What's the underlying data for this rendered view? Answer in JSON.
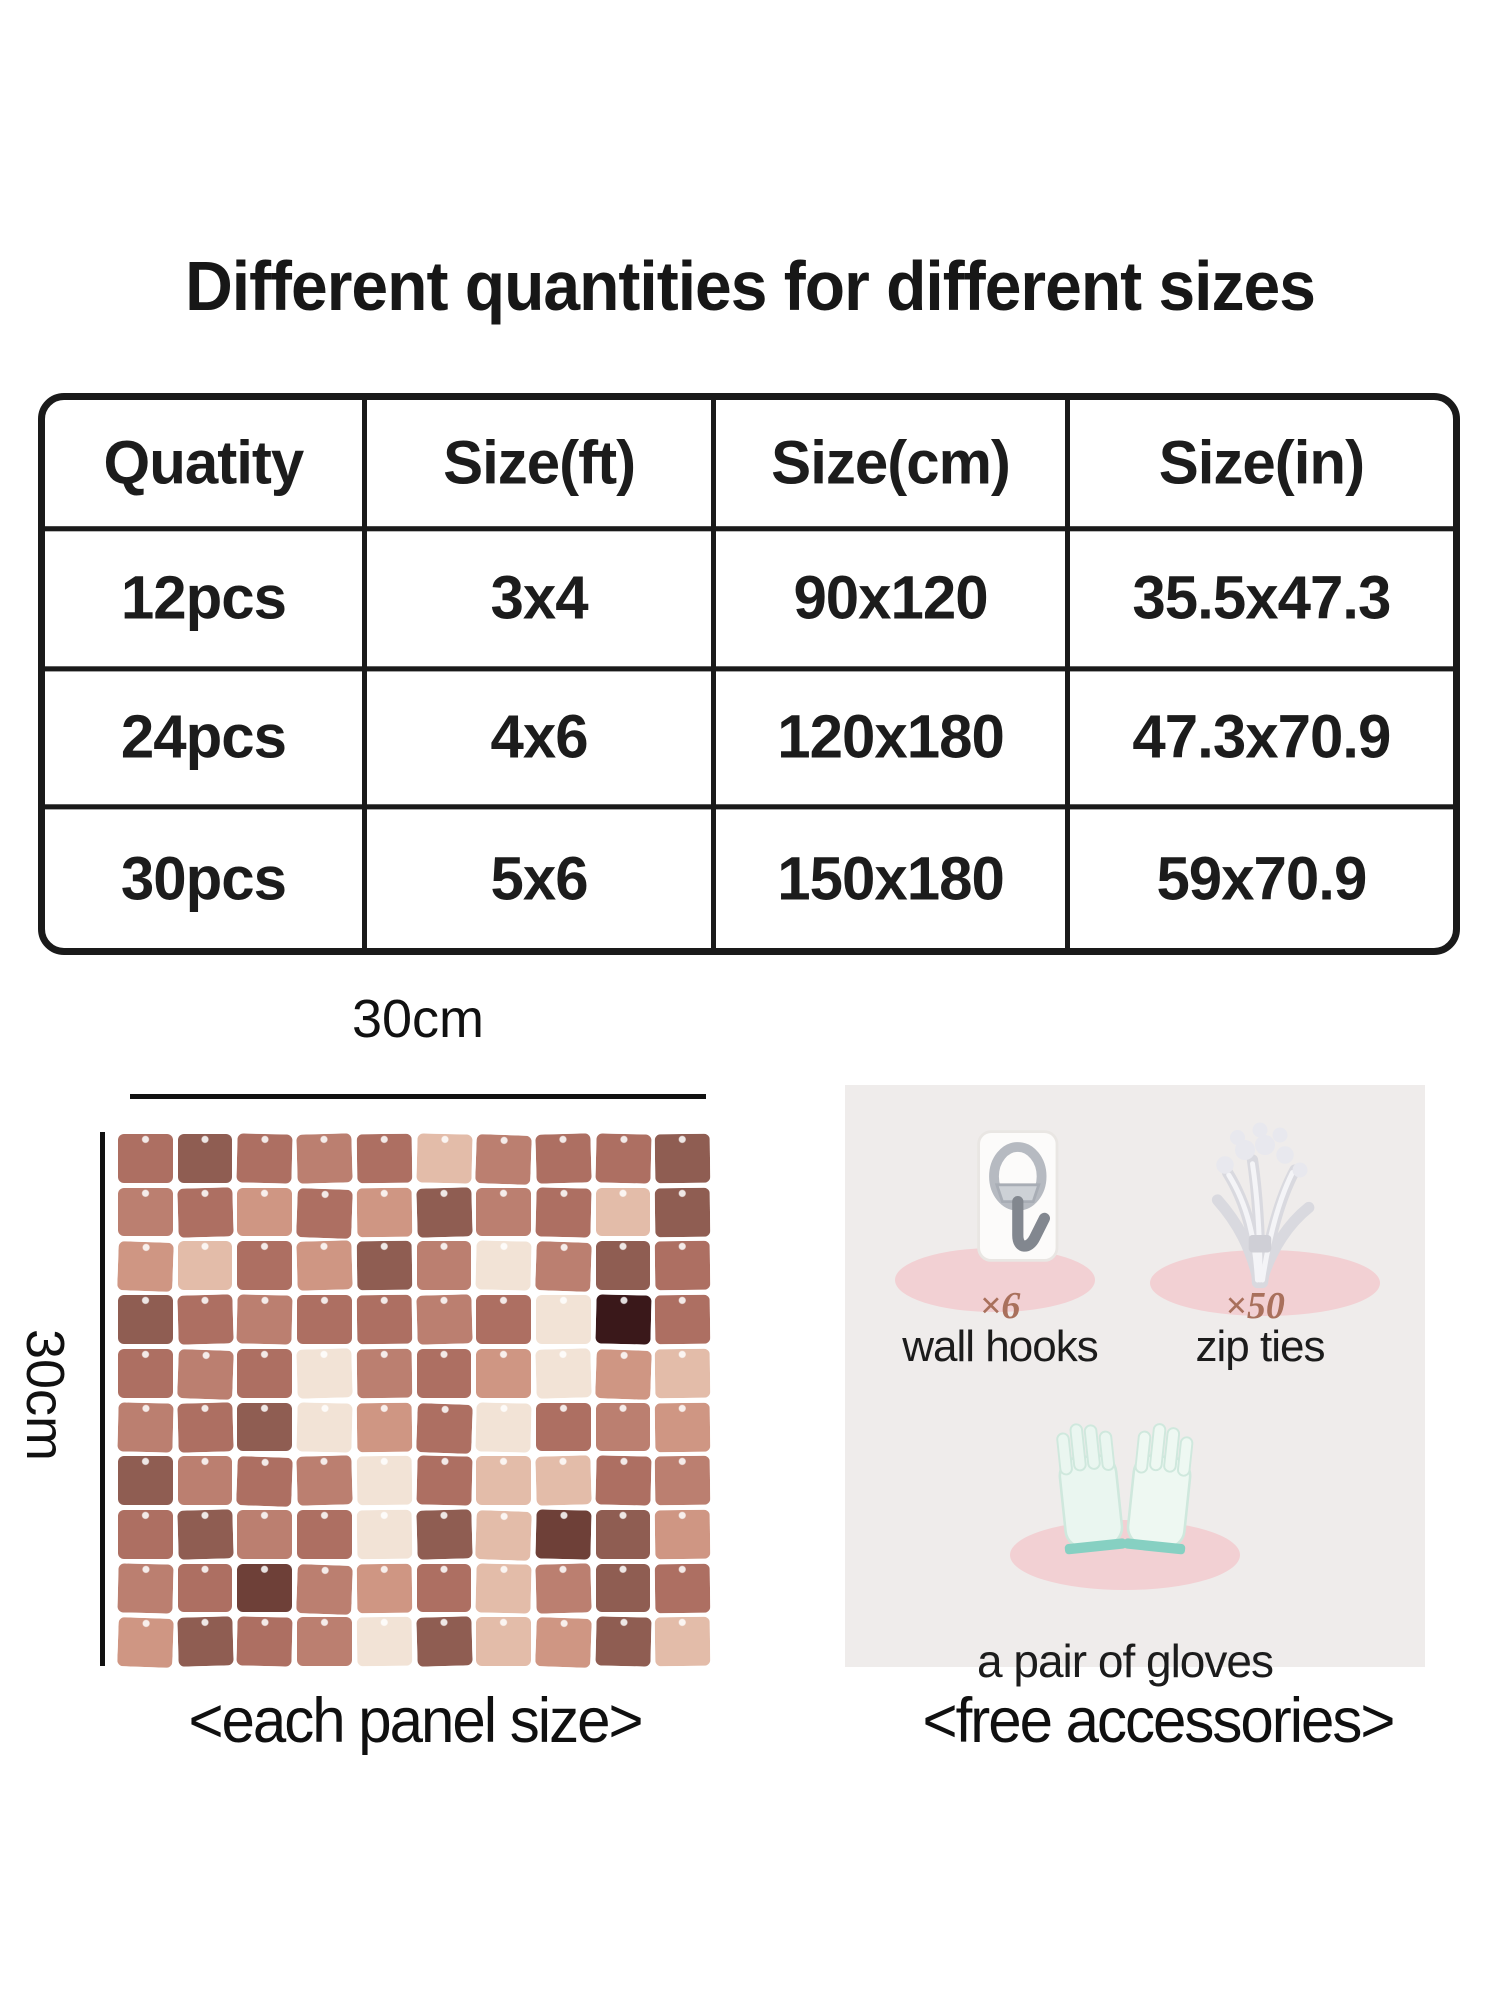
{
  "title": {
    "text": "Different quantities for different sizes"
  },
  "table": {
    "headers": [
      "Quatity",
      "Size(ft)",
      "Size(cm)",
      "Size(in)"
    ],
    "rows": [
      [
        "12pcs",
        "3x4",
        "90x120",
        "35.5x47.3"
      ],
      [
        "24pcs",
        "4x6",
        "120x180",
        "47.3x70.9"
      ],
      [
        "30pcs",
        "5x6",
        "150x180",
        "59x70.9"
      ]
    ]
  },
  "panel_figure": {
    "width_label": "30cm",
    "height_label": "30cm",
    "caption": "<each panel size>",
    "grid": {
      "cols": 10,
      "rows": 10,
      "palette": [
        "#f2e3d6",
        "#e3bca9",
        "#cf9683",
        "#bb7f70",
        "#ad6f62",
        "#8f5d52",
        "#6e4038",
        "#3a181a"
      ],
      "pattern": [
        [
          4,
          5,
          4,
          3,
          4,
          1,
          3,
          4,
          4,
          5
        ],
        [
          3,
          4,
          2,
          4,
          2,
          5,
          3,
          4,
          1,
          5
        ],
        [
          2,
          1,
          4,
          2,
          5,
          3,
          0,
          3,
          5,
          4
        ],
        [
          5,
          4,
          3,
          4,
          4,
          3,
          4,
          0,
          7,
          4
        ],
        [
          4,
          3,
          4,
          0,
          3,
          4,
          2,
          0,
          2,
          1
        ],
        [
          3,
          4,
          5,
          0,
          2,
          4,
          0,
          4,
          3,
          2
        ],
        [
          5,
          3,
          4,
          3,
          0,
          4,
          1,
          1,
          4,
          3
        ],
        [
          4,
          5,
          3,
          4,
          0,
          5,
          1,
          6,
          5,
          2
        ],
        [
          3,
          4,
          6,
          3,
          2,
          4,
          1,
          3,
          5,
          4
        ],
        [
          2,
          5,
          4,
          3,
          0,
          5,
          1,
          2,
          5,
          1
        ]
      ]
    }
  },
  "accessories": {
    "caption": "<free accessories>",
    "items": [
      {
        "icon": "wall-hook-icon",
        "count_label": "×6",
        "name": "wall hooks"
      },
      {
        "icon": "zip-ties-icon",
        "count_label": "×50",
        "name": "zip ties"
      },
      {
        "icon": "gloves-icon",
        "count_label": "",
        "name": "a pair of gloves"
      }
    ],
    "colors": {
      "card_bg": "#efeceb",
      "ellipse": "#f2d0d3",
      "count_text": "#a9705c"
    }
  }
}
